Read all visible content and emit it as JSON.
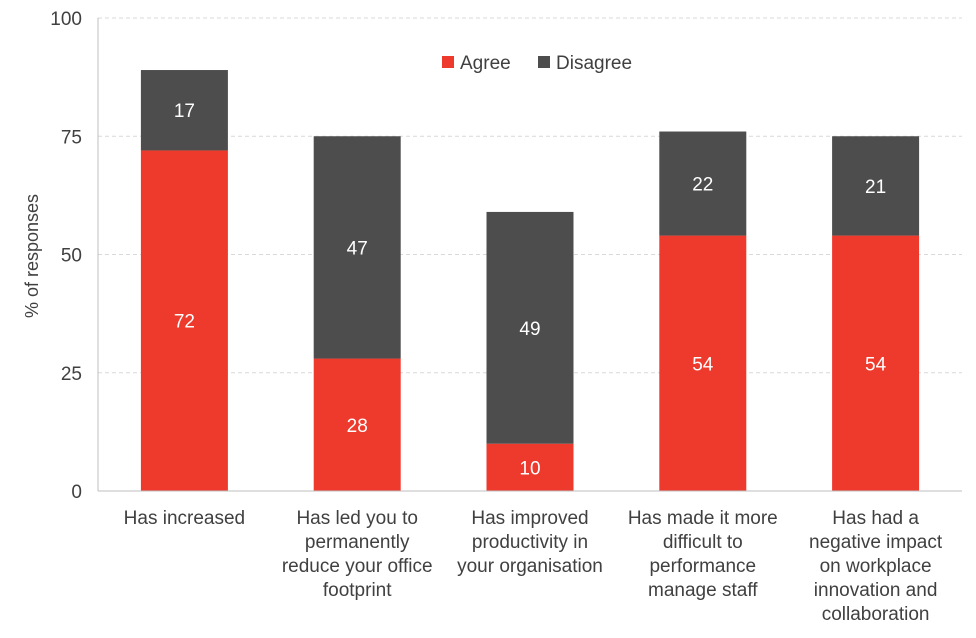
{
  "chart_data": {
    "type": "bar",
    "stacked": true,
    "title": "",
    "xlabel": "",
    "ylabel": "% of responses",
    "ylim": [
      0,
      100
    ],
    "yticks": [
      0,
      25,
      50,
      75,
      100
    ],
    "grid": true,
    "legend_position": "top-right",
    "categories": [
      [
        "Has increased"
      ],
      [
        "Has led you to",
        "permanently",
        "reduce your office",
        "footprint"
      ],
      [
        "Has improved",
        "productivity in",
        "your organisation"
      ],
      [
        "Has made it more",
        "difficult to",
        "performance",
        "manage staff"
      ],
      [
        "Has had a",
        "negative impact",
        "on workplace",
        "innovation and",
        "collaboration"
      ]
    ],
    "series": [
      {
        "name": "Agree",
        "color": "#ee3a2d",
        "values": [
          72,
          28,
          10,
          54,
          54
        ]
      },
      {
        "name": "Disagree",
        "color": "#4d4d4d",
        "values": [
          17,
          47,
          49,
          22,
          21
        ]
      }
    ]
  }
}
